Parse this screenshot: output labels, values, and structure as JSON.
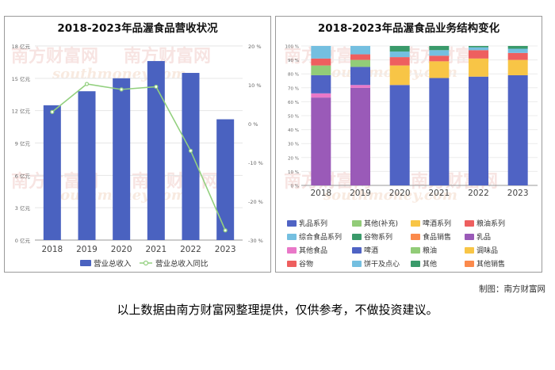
{
  "watermark": {
    "cn": "南方财富网",
    "en": "southmoney.com"
  },
  "credit": "制图：南方财富网",
  "disclaimer": "以上数据由南方财富网整理提供，仅供参考，不做投资建议。",
  "chart_data": [
    {
      "type": "bar",
      "title": "2018-2023年品渥食品营收状况",
      "categories": [
        "2018",
        "2019",
        "2020",
        "2021",
        "2022",
        "2023"
      ],
      "series": [
        {
          "name": "营业总收入",
          "type": "bar",
          "color": "#4a62c0",
          "values": [
            12.5,
            13.8,
            15.0,
            16.6,
            15.5,
            11.2
          ]
        },
        {
          "name": "营业总收入同比",
          "type": "line",
          "color": "#93d07f",
          "values": [
            3.0,
            10.2,
            8.8,
            9.5,
            -7.0,
            -27.5
          ]
        }
      ],
      "y_left": {
        "min": 0,
        "max": 18,
        "ticks": [
          "0 亿元",
          "3 亿元",
          "6 亿元",
          "9 亿元",
          "12 亿元",
          "15 亿元",
          "18 亿元"
        ]
      },
      "y_right": {
        "min": -30,
        "max": 20,
        "ticks": [
          "-30 %",
          "-20 %",
          "-10 %",
          "0 %",
          "10 %",
          "20 %"
        ]
      },
      "legend_position": "bottom",
      "grid": true
    },
    {
      "type": "bar",
      "stacked": true,
      "title": "2018-2023年品渥食品业务结构变化",
      "categories": [
        "2018",
        "2019",
        "2020",
        "2021",
        "2022",
        "2023"
      ],
      "y_axis": {
        "min": 0,
        "max": 100,
        "ticks": [
          "0 %",
          "10 %",
          "20 %",
          "30 %",
          "40 %",
          "50 %",
          "60 %",
          "70 %",
          "80 %",
          "90 %",
          "100 %"
        ]
      },
      "series": [
        {
          "name": "乳品系列",
          "color": "#4f63c4",
          "values": [
            0,
            0,
            72,
            77,
            78,
            79
          ]
        },
        {
          "name": "其他(补充)",
          "color": "#92cc78",
          "values": [
            0,
            0,
            0,
            0,
            0,
            0
          ]
        },
        {
          "name": "啤酒系列",
          "color": "#f8c546",
          "values": [
            0,
            0,
            14,
            12,
            13,
            11
          ]
        },
        {
          "name": "粮油系列",
          "color": "#ee5f5f",
          "values": [
            0,
            0,
            6,
            4,
            6,
            5
          ]
        },
        {
          "name": "综合食品系列",
          "color": "#74bfe0",
          "values": [
            0,
            0,
            4,
            4,
            2,
            3
          ]
        },
        {
          "name": "谷物系列",
          "color": "#3a9a6a",
          "values": [
            0,
            0,
            4,
            3,
            1,
            2
          ]
        },
        {
          "name": "食品销售",
          "color": "#fb8a4c",
          "values": [
            0,
            0,
            0,
            0,
            0,
            0
          ]
        },
        {
          "name": "乳品",
          "color": "#9a5ab8",
          "values": [
            63,
            70,
            0,
            0,
            0,
            0
          ]
        },
        {
          "name": "其他食品",
          "color": "#e978c8",
          "values": [
            3,
            2,
            0,
            0,
            0,
            0
          ]
        },
        {
          "name": "啤酒",
          "color": "#4f63c4",
          "values": [
            13,
            13,
            0,
            0,
            0,
            0
          ]
        },
        {
          "name": "粮油",
          "color": "#92cc78",
          "values": [
            7,
            5,
            0,
            0,
            0,
            0
          ]
        },
        {
          "name": "调味品",
          "color": "#f8c546",
          "values": [
            0,
            0,
            0,
            0,
            0,
            0
          ]
        },
        {
          "name": "谷物",
          "color": "#ee5f5f",
          "values": [
            5,
            4,
            0,
            0,
            0,
            0
          ]
        },
        {
          "name": "饼干及点心",
          "color": "#74bfe0",
          "values": [
            9,
            6,
            0,
            0,
            0,
            0
          ]
        },
        {
          "name": "其他",
          "color": "#3a9a6a",
          "values": [
            0,
            0,
            0,
            0,
            0,
            0
          ]
        },
        {
          "name": "其他销售",
          "color": "#fb8a4c",
          "values": [
            0,
            0,
            0,
            0,
            0,
            0
          ]
        }
      ],
      "legend_position": "bottom"
    }
  ]
}
